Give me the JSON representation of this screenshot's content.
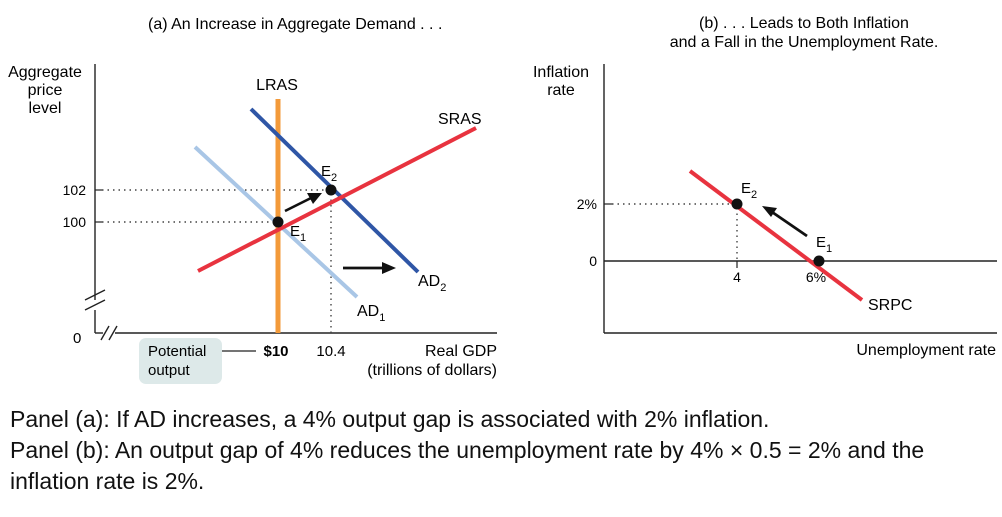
{
  "panel_a": {
    "title": "(a) An Increase in Aggregate Demand . . .",
    "y_axis_label": [
      "Aggregate",
      "price",
      "level"
    ],
    "x_axis_label": [
      "Real GDP",
      "(trillions of dollars)"
    ],
    "origin": "0",
    "y_ticks": [
      "102",
      "100"
    ],
    "x_ticks": [
      "$10",
      "10.4"
    ],
    "potential_output_label": [
      "Potential",
      "output"
    ],
    "curves": {
      "lras": "LRAS",
      "sras": "SRAS",
      "ad1": "AD",
      "ad1_sub": "1",
      "ad2": "AD",
      "ad2_sub": "2"
    },
    "points": {
      "e1": "E",
      "e1_sub": "1",
      "e2": "E",
      "e2_sub": "2"
    }
  },
  "panel_b": {
    "title": [
      "(b) . . . Leads to Both Inflation",
      "and a Fall in the Unemployment Rate."
    ],
    "y_axis_label": [
      "Inflation",
      "rate"
    ],
    "x_axis_label": "Unemployment rate",
    "y_ticks": [
      "2%",
      "0"
    ],
    "x_ticks": [
      "4",
      "6%"
    ],
    "curve": "SRPC",
    "points": {
      "e1": "E",
      "e1_sub": "1",
      "e2": "E",
      "e2_sub": "2"
    }
  },
  "caption": {
    "line1": "Panel (a): If AD increases, a 4% output gap is associated with 2% inflation.",
    "line2": "Panel (b): An output gap of 4% reduces the unemployment rate by 4% × 0.5 = 2% and the inflation rate is 2%."
  },
  "colors": {
    "lras": "#f39a3a",
    "sras": "#e8333f",
    "ad1": "#a9c6e6",
    "ad2": "#2f56a6",
    "srpc": "#e8333f",
    "potential_box": "#dde9e9"
  }
}
